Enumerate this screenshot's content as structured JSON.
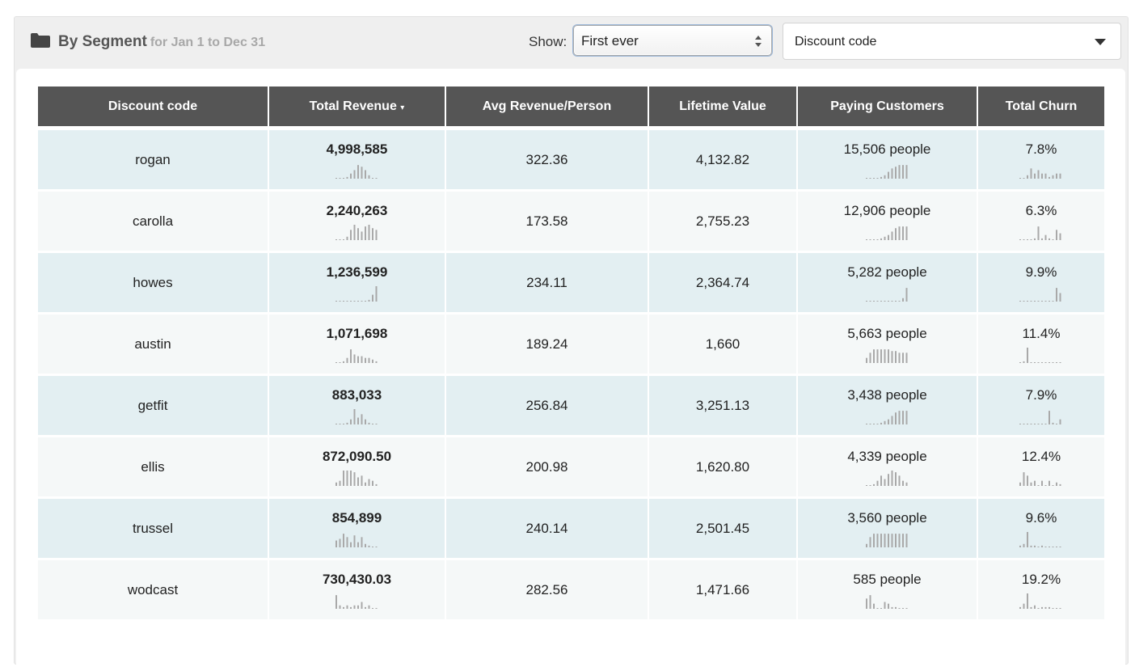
{
  "header": {
    "title": "By Segment",
    "subtitle": "for Jan 1 to Dec 31",
    "show_label": "Show:",
    "show_value": "First ever",
    "segment_value": "Discount code"
  },
  "table": {
    "columns": [
      "Discount code",
      "Total Revenue",
      "Avg Revenue/Person",
      "Lifetime Value",
      "Paying Customers",
      "Total Churn"
    ],
    "sort_indicator": "▾",
    "rows": [
      {
        "code": "rogan",
        "revenue": "4,998,585",
        "avg": "322.36",
        "ltv": "4,132.82",
        "customers": "15,506 people",
        "churn": "7.8%"
      },
      {
        "code": "carolla",
        "revenue": "2,240,263",
        "avg": "173.58",
        "ltv": "2,755.23",
        "customers": "12,906 people",
        "churn": "6.3%"
      },
      {
        "code": "howes",
        "revenue": "1,236,599",
        "avg": "234.11",
        "ltv": "2,364.74",
        "customers": "5,282 people",
        "churn": "9.9%"
      },
      {
        "code": "austin",
        "revenue": "1,071,698",
        "avg": "189.24",
        "ltv": "1,660",
        "customers": "5,663 people",
        "churn": "11.4%"
      },
      {
        "code": "getfit",
        "revenue": "883,033",
        "avg": "256.84",
        "ltv": "3,251.13",
        "customers": "3,438 people",
        "churn": "7.9%"
      },
      {
        "code": "ellis",
        "revenue": "872,090.50",
        "avg": "200.98",
        "ltv": "1,620.80",
        "customers": "4,339 people",
        "churn": "12.4%"
      },
      {
        "code": "trussel",
        "revenue": "854,899",
        "avg": "240.14",
        "ltv": "2,501.45",
        "customers": "3,560 people",
        "churn": "9.6%"
      },
      {
        "code": "wodcast",
        "revenue": "730,430.03",
        "avg": "282.56",
        "ltv": "1,471.66",
        "customers": "585 people",
        "churn": "19.2%"
      }
    ]
  },
  "sparklines": {
    "revenue": [
      [
        0,
        0,
        0,
        1,
        3,
        5,
        8,
        7,
        5,
        2,
        0,
        0
      ],
      [
        0,
        0,
        0,
        2,
        6,
        9,
        7,
        5,
        8,
        9,
        7,
        6
      ],
      [
        0,
        0,
        0,
        0,
        0,
        0,
        0,
        0,
        0,
        1,
        4,
        9
      ],
      [
        0,
        0,
        1,
        3,
        8,
        5,
        4,
        4,
        3,
        3,
        2,
        1
      ],
      [
        0,
        0,
        0,
        1,
        3,
        9,
        4,
        6,
        3,
        1,
        0,
        0
      ],
      [
        2,
        3,
        9,
        9,
        9,
        8,
        5,
        6,
        2,
        4,
        3,
        1
      ],
      [
        4,
        5,
        8,
        6,
        3,
        7,
        3,
        6,
        2,
        1,
        0,
        0
      ],
      [
        8,
        2,
        1,
        2,
        1,
        2,
        2,
        4,
        1,
        2,
        0,
        0
      ]
    ],
    "customers": [
      [
        0,
        0,
        0,
        0,
        1,
        2,
        4,
        6,
        7,
        8,
        8,
        8
      ],
      [
        0,
        0,
        0,
        0,
        1,
        2,
        3,
        5,
        7,
        8,
        8,
        8
      ],
      [
        0,
        0,
        0,
        0,
        0,
        0,
        0,
        0,
        0,
        0,
        2,
        8
      ],
      [
        3,
        6,
        8,
        8,
        8,
        8,
        8,
        7,
        7,
        6,
        6,
        6
      ],
      [
        0,
        0,
        0,
        0,
        1,
        2,
        3,
        5,
        7,
        8,
        8,
        8
      ],
      [
        0,
        0,
        1,
        3,
        6,
        4,
        7,
        9,
        8,
        6,
        3,
        2
      ],
      [
        2,
        6,
        8,
        8,
        8,
        8,
        8,
        8,
        8,
        8,
        8,
        8
      ],
      [
        6,
        8,
        3,
        0,
        0,
        4,
        3,
        1,
        1,
        0,
        0,
        0
      ]
    ],
    "churn": [
      [
        0,
        0,
        2,
        6,
        3,
        5,
        3,
        3,
        1,
        2,
        3,
        3
      ],
      [
        0,
        0,
        0,
        0,
        1,
        8,
        1,
        3,
        1,
        0,
        6,
        4
      ],
      [
        0,
        0,
        0,
        0,
        0,
        0,
        0,
        0,
        0,
        0,
        8,
        5
      ],
      [
        0,
        1,
        9,
        0,
        0,
        0,
        0,
        0,
        0,
        0,
        0,
        0
      ],
      [
        0,
        0,
        0,
        0,
        0,
        0,
        0,
        0,
        8,
        1,
        0,
        3
      ],
      [
        2,
        8,
        6,
        2,
        3,
        0,
        3,
        0,
        3,
        0,
        2,
        1
      ],
      [
        1,
        2,
        9,
        1,
        1,
        0,
        1,
        0,
        0,
        0,
        0,
        0
      ],
      [
        1,
        3,
        9,
        1,
        2,
        0,
        1,
        1,
        1,
        0,
        0,
        0
      ]
    ]
  }
}
